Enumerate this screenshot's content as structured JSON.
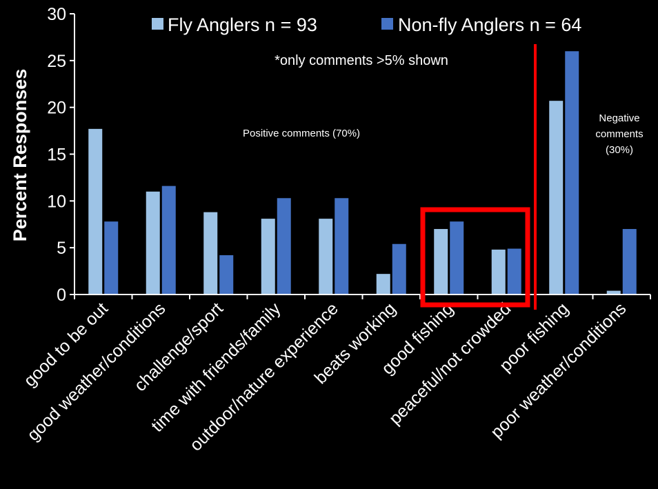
{
  "chart_data": {
    "type": "bar",
    "ylabel": "Percent Responses",
    "xlabel": "",
    "ylim": [
      0,
      30
    ],
    "yticks": [
      0,
      5,
      10,
      15,
      20,
      25,
      30
    ],
    "grid": false,
    "categories": [
      "good to be out",
      "good weather/conditions",
      "challenge/sport",
      "time with friends/family",
      "outdoor/nature experience",
      "beats working",
      "good fishing",
      "peaceful/not crowded",
      "poor fishing",
      "poor weather/conditions"
    ],
    "series": [
      {
        "name": "Fly Anglers n = 93",
        "color": "#9dc3e6",
        "values": [
          17.7,
          11.0,
          8.8,
          8.1,
          8.1,
          2.2,
          7.0,
          4.8,
          20.7,
          0.4
        ]
      },
      {
        "name": "Non-fly Anglers n = 64",
        "color": "#4472c4",
        "values": [
          7.8,
          11.6,
          4.2,
          10.3,
          10.3,
          5.4,
          7.8,
          4.9,
          26.0,
          7.0
        ]
      }
    ],
    "legend_position": "top",
    "annotations": {
      "note": "*only comments >5% shown",
      "positive": "Positive comments (70%)",
      "negative_lines": [
        "Negative",
        "comments",
        "(30%)"
      ]
    },
    "highlight_box_categories": [
      "good fishing",
      "peaceful/not crowded"
    ],
    "divider_color": "#ff0000",
    "highlight_color": "#ff0000"
  }
}
